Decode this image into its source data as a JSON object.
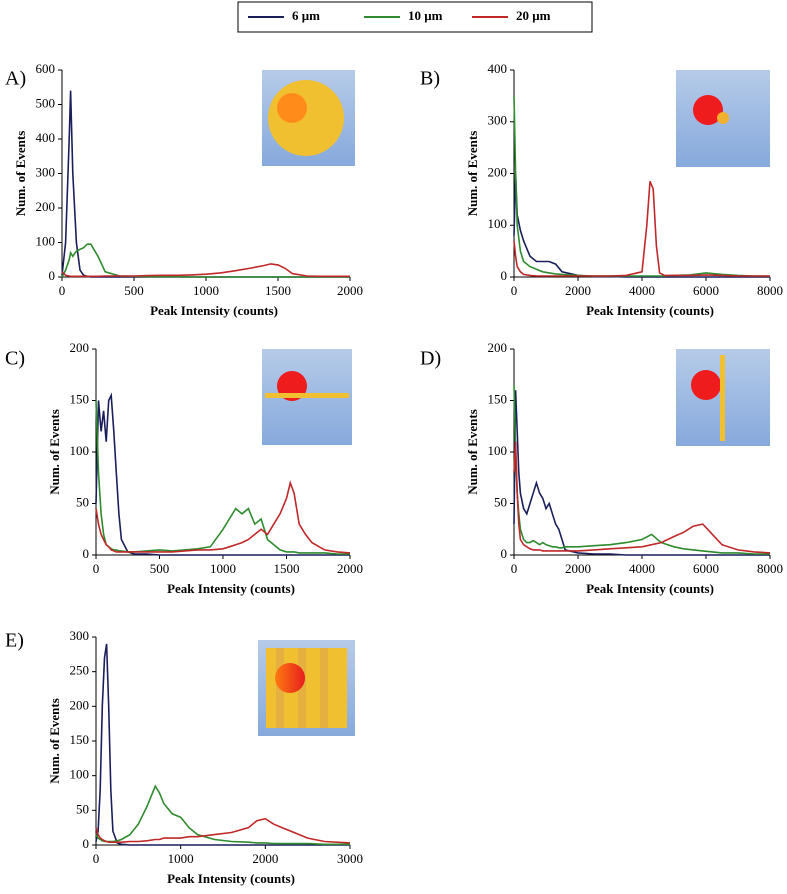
{
  "legend": [
    {
      "name": "6 μm",
      "color": "#1a1f5c"
    },
    {
      "name": "10 μm",
      "color": "#2e8b2e"
    },
    {
      "name": "20 μm",
      "color": "#c0282a"
    }
  ],
  "chart_data": [
    {
      "type": "line",
      "label": "A)",
      "x_label": "Peak Intensity (counts)",
      "y_label": "Num. of Events",
      "xlim": [
        0,
        2000
      ],
      "xticks": [
        0,
        500,
        1000,
        1500,
        2000
      ],
      "ylim": [
        0,
        600
      ],
      "yticks": [
        0,
        100,
        200,
        300,
        400,
        500,
        600
      ],
      "x": [
        0,
        25,
        50,
        60,
        75,
        100,
        125,
        150,
        175,
        200,
        250,
        300,
        400,
        500,
        600,
        700,
        800,
        900,
        1000,
        1100,
        1200,
        1300,
        1400,
        1450,
        1500,
        1550,
        1600,
        1700,
        1800,
        1900,
        2000
      ],
      "series": [
        {
          "values": [
            5,
            100,
            400,
            540,
            300,
            100,
            20,
            5,
            2,
            0,
            0,
            0,
            0,
            0,
            0,
            0,
            0,
            0,
            0,
            0,
            0,
            0,
            0,
            0,
            0,
            0,
            0,
            0,
            0,
            0,
            0
          ]
        },
        {
          "values": [
            0,
            20,
            50,
            70,
            60,
            75,
            80,
            85,
            95,
            95,
            60,
            15,
            3,
            2,
            1,
            1,
            1,
            0,
            0,
            0,
            0,
            0,
            0,
            0,
            0,
            0,
            0,
            0,
            0,
            0,
            0
          ]
        },
        {
          "values": [
            15,
            5,
            3,
            2,
            2,
            2,
            2,
            2,
            2,
            2,
            2,
            3,
            3,
            3,
            4,
            5,
            5,
            6,
            8,
            12,
            18,
            25,
            33,
            38,
            35,
            25,
            10,
            3,
            2,
            2,
            2
          ]
        }
      ]
    },
    {
      "type": "line",
      "label": "B)",
      "x_label": "Peak Intensity (counts)",
      "y_label": "Num. of Events",
      "xlim": [
        0,
        8000
      ],
      "xticks": [
        0,
        2000,
        4000,
        6000,
        8000
      ],
      "ylim": [
        0,
        400
      ],
      "yticks": [
        0,
        100,
        200,
        300,
        400
      ],
      "x": [
        0,
        50,
        100,
        200,
        300,
        500,
        700,
        900,
        1100,
        1300,
        1500,
        2000,
        2500,
        3000,
        3500,
        4000,
        4150,
        4250,
        4350,
        4450,
        4550,
        4700,
        5000,
        5500,
        6000,
        6500,
        7000,
        7500,
        8000
      ],
      "series": [
        {
          "values": [
            80,
            200,
            120,
            90,
            70,
            40,
            30,
            30,
            30,
            25,
            10,
            3,
            1,
            1,
            0,
            0,
            0,
            0,
            0,
            0,
            0,
            0,
            0,
            0,
            0,
            0,
            0,
            0,
            0
          ]
        },
        {
          "values": [
            350,
            200,
            100,
            50,
            30,
            20,
            15,
            10,
            8,
            6,
            5,
            3,
            2,
            2,
            2,
            2,
            2,
            2,
            2,
            2,
            2,
            2,
            3,
            4,
            8,
            5,
            3,
            2,
            2
          ]
        },
        {
          "values": [
            70,
            40,
            20,
            10,
            5,
            3,
            2,
            2,
            2,
            2,
            2,
            2,
            2,
            2,
            3,
            10,
            100,
            185,
            170,
            60,
            8,
            3,
            3,
            3,
            4,
            3,
            2,
            2,
            2
          ]
        }
      ]
    },
    {
      "type": "line",
      "label": "C)",
      "x_label": "Peak Intensity (counts)",
      "y_label": "Num. of Events",
      "xlim": [
        0,
        2000
      ],
      "xticks": [
        0,
        500,
        1000,
        1500,
        2000
      ],
      "ylim": [
        0,
        200
      ],
      "yticks": [
        0,
        50,
        100,
        150,
        200
      ],
      "x": [
        0,
        20,
        40,
        60,
        80,
        100,
        120,
        140,
        160,
        180,
        200,
        250,
        300,
        400,
        500,
        600,
        700,
        800,
        900,
        1000,
        1050,
        1100,
        1150,
        1200,
        1250,
        1300,
        1350,
        1400,
        1450,
        1500,
        1530,
        1560,
        1600,
        1650,
        1700,
        1800,
        1900,
        2000
      ],
      "series": [
        {
          "values": [
            50,
            150,
            120,
            140,
            110,
            150,
            155,
            120,
            80,
            40,
            15,
            3,
            1,
            1,
            0,
            0,
            0,
            0,
            0,
            0,
            0,
            0,
            0,
            0,
            0,
            0,
            0,
            0,
            0,
            0,
            0,
            0,
            0,
            0,
            0,
            0,
            0,
            0
          ]
        },
        {
          "values": [
            150,
            80,
            40,
            20,
            10,
            8,
            6,
            5,
            5,
            4,
            4,
            3,
            3,
            4,
            5,
            4,
            5,
            6,
            8,
            25,
            35,
            45,
            40,
            45,
            30,
            35,
            15,
            10,
            5,
            3,
            3,
            3,
            2,
            2,
            2,
            2,
            1,
            1
          ]
        },
        {
          "values": [
            45,
            30,
            20,
            15,
            10,
            8,
            5,
            4,
            3,
            3,
            3,
            3,
            3,
            3,
            3,
            3,
            4,
            5,
            5,
            6,
            8,
            10,
            12,
            15,
            20,
            25,
            20,
            30,
            40,
            55,
            70,
            60,
            30,
            20,
            12,
            5,
            3,
            2
          ]
        }
      ]
    },
    {
      "type": "line",
      "label": "D)",
      "x_label": "Peak Intensity (counts)",
      "y_label": "Num. of Events",
      "xlim": [
        0,
        8000
      ],
      "xticks": [
        0,
        2000,
        4000,
        6000,
        8000
      ],
      "ylim": [
        0,
        200
      ],
      "yticks": [
        0,
        50,
        100,
        150,
        200
      ],
      "x": [
        0,
        50,
        100,
        150,
        200,
        300,
        400,
        500,
        600,
        700,
        800,
        900,
        1000,
        1100,
        1200,
        1300,
        1400,
        1500,
        1600,
        2000,
        2500,
        3000,
        3500,
        4000,
        4300,
        4600,
        5000,
        5300,
        5600,
        5900,
        6200,
        6500,
        7000,
        7500,
        8000
      ],
      "series": [
        {
          "values": [
            30,
            160,
            120,
            80,
            60,
            45,
            40,
            50,
            60,
            70,
            60,
            55,
            45,
            50,
            40,
            30,
            25,
            15,
            5,
            2,
            1,
            1,
            0,
            0,
            0,
            0,
            0,
            0,
            0,
            0,
            0,
            0,
            0,
            0,
            0
          ]
        },
        {
          "values": [
            165,
            100,
            60,
            40,
            25,
            15,
            12,
            12,
            14,
            12,
            10,
            12,
            10,
            9,
            8,
            8,
            7,
            7,
            8,
            8,
            9,
            10,
            12,
            15,
            20,
            12,
            8,
            6,
            5,
            4,
            3,
            2,
            2,
            1,
            1
          ]
        },
        {
          "values": [
            80,
            110,
            60,
            30,
            15,
            10,
            8,
            6,
            5,
            5,
            5,
            4,
            4,
            4,
            4,
            4,
            4,
            4,
            4,
            4,
            5,
            6,
            7,
            8,
            10,
            12,
            18,
            22,
            28,
            30,
            20,
            10,
            5,
            3,
            2
          ]
        }
      ]
    },
    {
      "type": "line",
      "label": "E)",
      "x_label": "Peak Intensity (counts)",
      "y_label": "Num. of Events",
      "xlim": [
        0,
        3000
      ],
      "xticks": [
        0,
        1000,
        2000,
        3000
      ],
      "ylim": [
        0,
        300
      ],
      "yticks": [
        0,
        50,
        100,
        150,
        200,
        250,
        300
      ],
      "x": [
        0,
        25,
        50,
        75,
        100,
        125,
        150,
        175,
        200,
        250,
        300,
        400,
        500,
        600,
        700,
        750,
        800,
        900,
        1000,
        1100,
        1200,
        1400,
        1600,
        1800,
        1900,
        2000,
        2100,
        2200,
        2300,
        2500,
        2700,
        3000
      ],
      "series": [
        {
          "values": [
            5,
            20,
            80,
            200,
            270,
            290,
            200,
            80,
            20,
            3,
            1,
            0,
            0,
            0,
            0,
            0,
            0,
            0,
            0,
            0,
            0,
            0,
            0,
            0,
            0,
            0,
            0,
            0,
            0,
            0,
            0,
            0
          ]
        },
        {
          "values": [
            15,
            10,
            8,
            6,
            5,
            5,
            5,
            5,
            5,
            6,
            8,
            15,
            30,
            55,
            85,
            75,
            60,
            45,
            40,
            25,
            15,
            8,
            5,
            4,
            3,
            3,
            2,
            2,
            2,
            2,
            1,
            1
          ]
        },
        {
          "values": [
            25,
            15,
            10,
            8,
            6,
            5,
            4,
            4,
            4,
            4,
            4,
            5,
            5,
            6,
            8,
            8,
            10,
            10,
            10,
            12,
            12,
            15,
            18,
            25,
            35,
            38,
            30,
            25,
            20,
            10,
            5,
            3
          ]
        }
      ]
    }
  ]
}
